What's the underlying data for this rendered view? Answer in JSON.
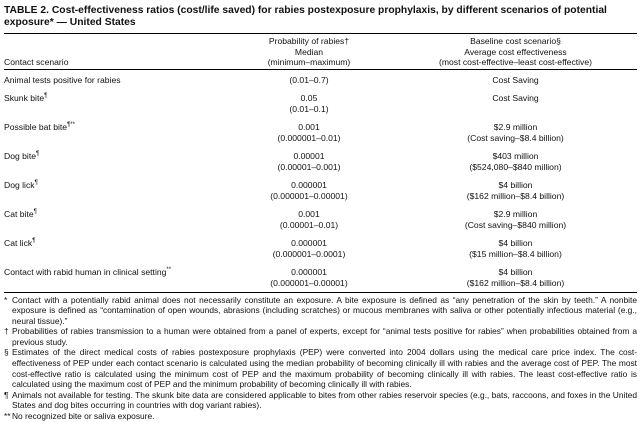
{
  "title": "TABLE 2. Cost-effectiveness ratios (cost/life saved) for rabies postexposure prophylaxis, by different scenarios of potential exposure* — United States",
  "headers": {
    "contact": "Contact scenario",
    "prob": [
      "Probability of rabies†",
      "Median",
      "(minimum–maximum)"
    ],
    "cost": [
      "Baseline cost scenario§",
      "Average cost effectiveness",
      "(most cost-effective–least cost-effective)"
    ]
  },
  "rows": [
    {
      "scenario": "Animal tests positive for rabies",
      "mark": "",
      "median": "",
      "range": "(0.01–0.7)",
      "avg": "Cost Saving",
      "span": ""
    },
    {
      "scenario": "Skunk bite",
      "mark": "¶",
      "median": "0.05",
      "range": "(0.01–0.1)",
      "avg": "Cost Saving",
      "span": ""
    },
    {
      "scenario": "Possible bat bite",
      "mark": "¶**",
      "median": "0.001",
      "range": "(0.000001–0.01)",
      "avg": "$2.9 million",
      "span": "(Cost saving–$8.4 billion)"
    },
    {
      "scenario": "Dog bite",
      "mark": "¶",
      "median": "0.00001",
      "range": "(0.00001–0.001)",
      "avg": "$403 million",
      "span": "($524,080–$840 million)"
    },
    {
      "scenario": "Dog lick",
      "mark": "¶",
      "median": "0.000001",
      "range": "(0.000001–0.00001)",
      "avg": "$4 billion",
      "span": "($162 million–$8.4 billion)"
    },
    {
      "scenario": "Cat bite",
      "mark": "¶",
      "median": "0.001",
      "range": "(0.00001–0.01)",
      "avg": "$2.9 million",
      "span": "(Cost saving–$840 million)"
    },
    {
      "scenario": "Cat lick",
      "mark": "¶",
      "median": "0.000001",
      "range": "(0.000001–0.0001)",
      "avg": "$4 billion",
      "span": "($15 million–$8.4 billion)"
    },
    {
      "scenario": "Contact with rabid human in clinical setting",
      "mark": "**",
      "median": "0.000001",
      "range": "(0.000001–0.00001)",
      "avg": "$4 billion",
      "span": "($162 million–$8.4 billion)"
    }
  ],
  "footnotes": [
    {
      "mark": "*",
      "text": "Contact with a potentially rabid animal does not necessarily constitute an exposure. A bite exposure is defined as “any penetration of the skin by teeth.” A nonbite exposure is defined as “contamination of open wounds, abrasions (including scratches) or mucous membranes with saliva or other potentially infectious material (e.g., neural tissue).”"
    },
    {
      "mark": "†",
      "text": "Probabilities of rabies transmission to a human were obtained from a panel of experts, except for “animal tests positive for rabies” when probabilities obtained from a previous study."
    },
    {
      "mark": "§",
      "text": "Estimates of the direct medical costs of rabies postexposure prophylaxis (PEP) were converted into 2004 dollars using the medical care price index. The cost-effectiveness of PEP under each contact scenario is calculated using the median probability of becoming clinically ill with rabies and the average cost of PEP. The most cost-effective ratio is calculated using the minimum cost of PEP and the maximum probability of becoming clinically ill with rabies. The least cost-effective ratio is calculated using the maximum cost of PEP and the minimum probability of becoming clinically ill with rabies."
    },
    {
      "mark": "¶",
      "text": "Animals not available for testing. The skunk bite data are considered applicable to bites from other rabies reservoir species (e.g., bats, raccoons, and foxes in the United States and dog bites occurring in countries with dog variant rabies)."
    },
    {
      "mark": "**",
      "text": "No recognized bite or saliva exposure."
    }
  ]
}
